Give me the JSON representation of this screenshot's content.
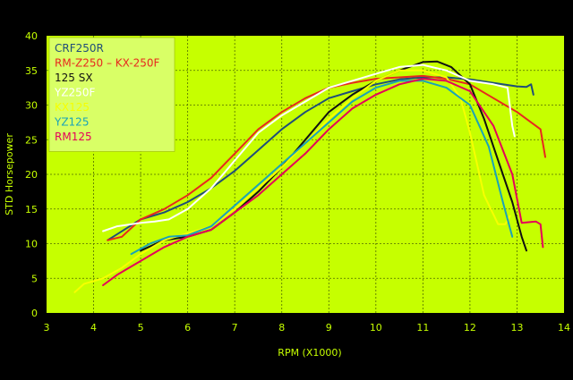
{
  "chart_data": {
    "type": "line",
    "xlabel": "RPM (X1000)",
    "ylabel": "STD Horsepower",
    "xlim": [
      3,
      14
    ],
    "ylim": [
      0,
      40
    ],
    "x_ticks": [
      3,
      4,
      5,
      6,
      7,
      8,
      9,
      10,
      11,
      12,
      13,
      14
    ],
    "y_ticks": [
      0,
      5,
      10,
      15,
      20,
      25,
      30,
      35,
      40
    ],
    "grid": "dashed",
    "legend_position": "top-left",
    "colors": {
      "background": "#000000",
      "plot_area": "#c6ff00",
      "grid": "#4d6b00",
      "axis_text": "#c6ff00",
      "legend_box": "#d9ff66"
    },
    "series": [
      {
        "name": "CRF250R",
        "color": "#1f4e79",
        "points": [
          [
            4.3,
            10.5
          ],
          [
            5,
            13.5
          ],
          [
            5.5,
            14.5
          ],
          [
            6,
            16
          ],
          [
            6.5,
            18
          ],
          [
            7,
            20.5
          ],
          [
            7.5,
            23.5
          ],
          [
            8,
            26.5
          ],
          [
            8.5,
            29
          ],
          [
            9,
            31
          ],
          [
            9.5,
            32
          ],
          [
            10,
            33
          ],
          [
            10.5,
            33.7
          ],
          [
            11,
            34
          ],
          [
            11.5,
            34
          ],
          [
            12,
            33.7
          ],
          [
            12.5,
            33.2
          ],
          [
            13,
            32.7
          ],
          [
            13.2,
            32.6
          ],
          [
            13.3,
            33
          ],
          [
            13.35,
            31.5
          ]
        ]
      },
      {
        "name": "RM-Z250 – KX-250F",
        "color": "#e8281e",
        "points": [
          [
            4.3,
            10.5
          ],
          [
            4.6,
            11
          ],
          [
            5,
            13.5
          ],
          [
            5.5,
            15
          ],
          [
            6,
            17
          ],
          [
            6.5,
            19.5
          ],
          [
            7,
            23
          ],
          [
            7.5,
            26.5
          ],
          [
            8,
            29
          ],
          [
            8.5,
            31
          ],
          [
            9,
            32.5
          ],
          [
            9.5,
            33.2
          ],
          [
            10,
            33.8
          ],
          [
            10.5,
            34
          ],
          [
            11,
            34.2
          ],
          [
            11.5,
            33.8
          ],
          [
            12,
            33
          ],
          [
            12.5,
            31
          ],
          [
            13,
            29
          ],
          [
            13.5,
            26.5
          ],
          [
            13.6,
            22.5
          ]
        ]
      },
      {
        "name": "125 SX",
        "color": "#111111",
        "points": [
          [
            5,
            9
          ],
          [
            5.5,
            10.5
          ],
          [
            6,
            11
          ],
          [
            6.5,
            12
          ],
          [
            7,
            14.5
          ],
          [
            7.5,
            17.5
          ],
          [
            8,
            21
          ],
          [
            8.5,
            25
          ],
          [
            9,
            29
          ],
          [
            9.5,
            31.5
          ],
          [
            10,
            33.5
          ],
          [
            10.5,
            35
          ],
          [
            11,
            36.2
          ],
          [
            11.3,
            36.3
          ],
          [
            11.6,
            35.5
          ],
          [
            12,
            33
          ],
          [
            12.3,
            28
          ],
          [
            12.6,
            22
          ],
          [
            12.9,
            16
          ],
          [
            13.1,
            11
          ],
          [
            13.2,
            9
          ]
        ]
      },
      {
        "name": "YZ250F",
        "color": "#ffffff",
        "points": [
          [
            4.2,
            11.8
          ],
          [
            4.5,
            12.5
          ],
          [
            5,
            13
          ],
          [
            5.3,
            13.2
          ],
          [
            5.6,
            13.5
          ],
          [
            6,
            15
          ],
          [
            6.5,
            18
          ],
          [
            7,
            22
          ],
          [
            7.5,
            26
          ],
          [
            8,
            28.5
          ],
          [
            8.5,
            30.5
          ],
          [
            9,
            32.5
          ],
          [
            9.5,
            33.5
          ],
          [
            10,
            34.5
          ],
          [
            10.5,
            35.5
          ],
          [
            11,
            35.8
          ],
          [
            11.5,
            35
          ],
          [
            12,
            33.5
          ],
          [
            12.5,
            33
          ],
          [
            12.8,
            32.5
          ],
          [
            12.9,
            27
          ],
          [
            12.95,
            25.5
          ]
        ]
      },
      {
        "name": "KX125",
        "color": "#f6ff00",
        "points": [
          [
            3.6,
            3
          ],
          [
            3.8,
            4.2
          ],
          [
            4.2,
            5
          ],
          [
            4.6,
            6.5
          ],
          [
            5,
            8.5
          ],
          [
            5.5,
            10.5
          ],
          [
            6,
            11.5
          ],
          [
            6.5,
            12.5
          ],
          [
            7,
            15
          ],
          [
            7.5,
            18
          ],
          [
            8,
            21
          ],
          [
            8.5,
            24.5
          ],
          [
            9,
            28
          ],
          [
            9.5,
            31
          ],
          [
            10,
            33.5
          ],
          [
            10.5,
            35
          ],
          [
            11,
            35
          ],
          [
            11.5,
            34
          ],
          [
            11.8,
            31
          ],
          [
            12,
            26
          ],
          [
            12.3,
            17
          ],
          [
            12.6,
            12.8
          ],
          [
            12.75,
            12.8
          ],
          [
            12.85,
            14
          ]
        ]
      },
      {
        "name": "YZ125",
        "color": "#1aa3b8",
        "points": [
          [
            4.8,
            8.5
          ],
          [
            5.2,
            10
          ],
          [
            5.6,
            11
          ],
          [
            6,
            11.2
          ],
          [
            6.5,
            12.5
          ],
          [
            7,
            15.5
          ],
          [
            7.5,
            18.5
          ],
          [
            8,
            21.5
          ],
          [
            8.5,
            24.5
          ],
          [
            9,
            27.5
          ],
          [
            9.5,
            30.5
          ],
          [
            10,
            32.5
          ],
          [
            10.5,
            33.5
          ],
          [
            11,
            33.5
          ],
          [
            11.5,
            32.5
          ],
          [
            12,
            30
          ],
          [
            12.4,
            24
          ],
          [
            12.7,
            16
          ],
          [
            12.9,
            11
          ]
        ]
      },
      {
        "name": "RM125",
        "color": "#e5005a",
        "points": [
          [
            4.2,
            4
          ],
          [
            4.5,
            5.5
          ],
          [
            5,
            7.5
          ],
          [
            5.5,
            9.5
          ],
          [
            6,
            11
          ],
          [
            6.5,
            12
          ],
          [
            7,
            14.5
          ],
          [
            7.5,
            17
          ],
          [
            8,
            20
          ],
          [
            8.5,
            23
          ],
          [
            9,
            26.5
          ],
          [
            9.5,
            29.5
          ],
          [
            10,
            31.5
          ],
          [
            10.5,
            33
          ],
          [
            11,
            33.8
          ],
          [
            11.5,
            33.5
          ],
          [
            12,
            32
          ],
          [
            12.5,
            27
          ],
          [
            12.9,
            20
          ],
          [
            13.1,
            13
          ],
          [
            13.4,
            13.2
          ],
          [
            13.5,
            12.8
          ],
          [
            13.55,
            9.5
          ]
        ]
      }
    ]
  }
}
